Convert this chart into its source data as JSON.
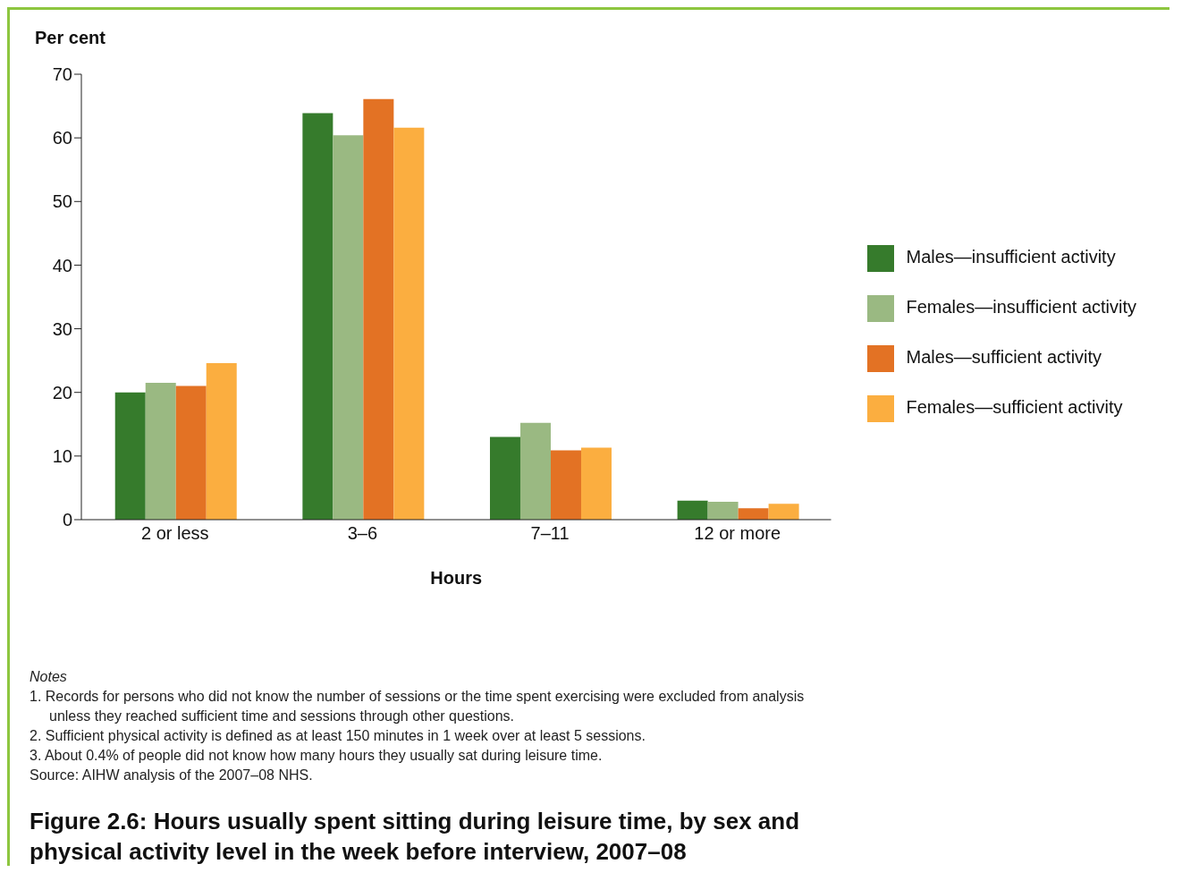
{
  "chart_data": {
    "type": "bar",
    "title": "Figure 2.6: Hours usually spent sitting during leisure time, by sex and physical activity level in the week before interview, 2007–08",
    "xlabel": "Hours",
    "ylabel": "Per cent",
    "categories": [
      "2 or less",
      "3–6",
      "7–11",
      "12 or more"
    ],
    "series": [
      {
        "name": "Males—insufficient activity",
        "color": "#367b2c",
        "values": [
          20.0,
          63.9,
          13.0,
          3.0
        ]
      },
      {
        "name": "Females—insufficient activity",
        "color": "#9ab982",
        "values": [
          21.5,
          60.4,
          15.2,
          2.8
        ]
      },
      {
        "name": "Males—sufficient activity",
        "color": "#e37224",
        "values": [
          21.0,
          66.1,
          10.9,
          1.8
        ]
      },
      {
        "name": "Females—sufficient activity",
        "color": "#fbae40",
        "values": [
          24.6,
          61.6,
          11.3,
          2.5
        ]
      }
    ],
    "ylim": [
      0,
      70
    ],
    "yticks": [
      0,
      10,
      20,
      30,
      40,
      50,
      60,
      70
    ],
    "grid": false,
    "legend": "right",
    "annotations": [
      "Notes",
      "1. Records for persons who did not know the number of sessions or the time spent exercising were excluded from analysis unless they reached sufficient time and sessions through other questions.",
      "2. Sufficient physical activity is defined as at least 150 minutes in 1 week over at least 5 sessions.",
      "3. About 0.4% of people did not know how many hours they usually sat during leisure time.",
      "Source: AIHW analysis of the 2007–08 NHS."
    ]
  }
}
